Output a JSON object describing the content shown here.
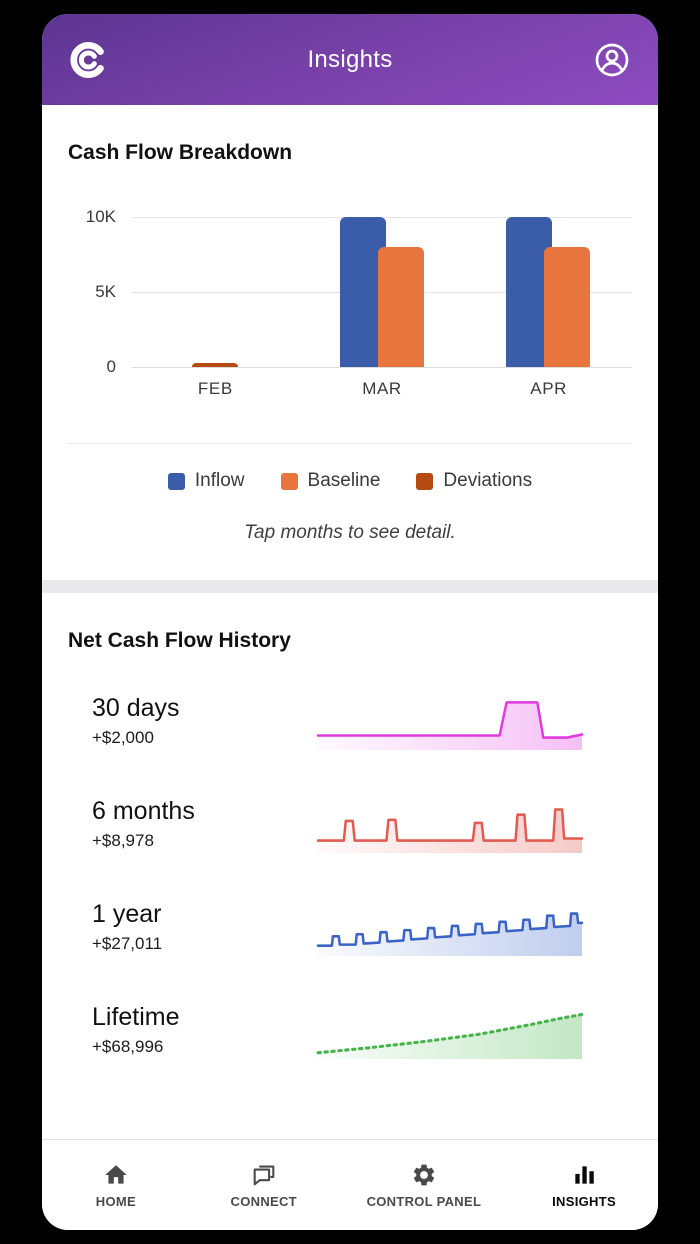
{
  "header": {
    "title": "Insights"
  },
  "cash_flow_breakdown": {
    "title": "Cash Flow Breakdown",
    "caption": "Tap months to see detail.",
    "legend": [
      {
        "label": "Inflow",
        "color": "#3b5ca9"
      },
      {
        "label": "Baseline",
        "color": "#e8743e"
      },
      {
        "label": "Deviations",
        "color": "#b54b10"
      }
    ]
  },
  "chart_data": [
    {
      "type": "bar",
      "title": "Cash Flow Breakdown",
      "categories": [
        "FEB",
        "MAR",
        "APR"
      ],
      "series": [
        {
          "name": "Inflow",
          "color": "#3b5ca9",
          "values": [
            0,
            10000,
            10000
          ]
        },
        {
          "name": "Baseline",
          "color": "#e8743e",
          "values": [
            0,
            8000,
            8000
          ]
        },
        {
          "name": "Deviations",
          "color": "#b54b10",
          "values": [
            250,
            0,
            0
          ]
        }
      ],
      "yticks": [
        "10K",
        "5K",
        "0"
      ],
      "ylim": [
        0,
        10000
      ],
      "grid": true,
      "legend_position": "bottom"
    },
    {
      "type": "line",
      "title": "Net Cash Flow History",
      "series": [
        {
          "name": "30 days",
          "value_label": "+$2,000",
          "net": 2000,
          "color": "#e03ae0",
          "dashed": false,
          "points": [
            [
              2,
              42
            ],
            [
              185,
              42
            ],
            [
              192,
              10
            ],
            [
              223,
              10
            ],
            [
              229,
              44
            ],
            [
              253,
              44
            ],
            [
              268,
              41
            ]
          ]
        },
        {
          "name": "6 months",
          "value_label": "+$8,978",
          "net": 8978,
          "color": "#e05b50",
          "dashed": false,
          "points": [
            [
              2,
              44
            ],
            [
              28,
              44
            ],
            [
              30,
              25
            ],
            [
              37,
              25
            ],
            [
              39,
              44
            ],
            [
              71,
              44
            ],
            [
              73,
              24
            ],
            [
              80,
              24
            ],
            [
              82,
              44
            ],
            [
              158,
              44
            ],
            [
              160,
              27
            ],
            [
              167,
              27
            ],
            [
              169,
              44
            ],
            [
              201,
              44
            ],
            [
              203,
              19
            ],
            [
              210,
              19
            ],
            [
              212,
              44
            ],
            [
              239,
              44
            ],
            [
              241,
              14
            ],
            [
              248,
              14
            ],
            [
              250,
              42
            ],
            [
              268,
              42
            ]
          ]
        },
        {
          "name": "1 year",
          "value_label": "+$27,011",
          "net": 27011,
          "color": "#3a63c8",
          "dashed": false,
          "points": [
            [
              2,
              46
            ],
            [
              16,
              46
            ],
            [
              17,
              37
            ],
            [
              23,
              37
            ],
            [
              24,
              45
            ],
            [
              40,
              45
            ],
            [
              41,
              35
            ],
            [
              47,
              35
            ],
            [
              48,
              44
            ],
            [
              64,
              43
            ],
            [
              65,
              33
            ],
            [
              71,
              33
            ],
            [
              72,
              42
            ],
            [
              88,
              41
            ],
            [
              89,
              31
            ],
            [
              95,
              31
            ],
            [
              96,
              40
            ],
            [
              112,
              39
            ],
            [
              113,
              29
            ],
            [
              119,
              29
            ],
            [
              120,
              38
            ],
            [
              136,
              37
            ],
            [
              137,
              27
            ],
            [
              143,
              27
            ],
            [
              144,
              36
            ],
            [
              160,
              35
            ],
            [
              161,
              25
            ],
            [
              167,
              25
            ],
            [
              168,
              34
            ],
            [
              184,
              33
            ],
            [
              185,
              23
            ],
            [
              191,
              23
            ],
            [
              192,
              32
            ],
            [
              208,
              31
            ],
            [
              209,
              21
            ],
            [
              215,
              21
            ],
            [
              216,
              30
            ],
            [
              232,
              29
            ],
            [
              233,
              17
            ],
            [
              239,
              17
            ],
            [
              240,
              28
            ],
            [
              256,
              27
            ],
            [
              257,
              15
            ],
            [
              263,
              15
            ],
            [
              264,
              24
            ],
            [
              268,
              24
            ]
          ]
        },
        {
          "name": "Lifetime",
          "value_label": "+$68,996",
          "net": 68996,
          "color": "#45b54b",
          "dashed": true,
          "points": [
            [
              2,
              50
            ],
            [
              55,
              45
            ],
            [
              110,
              39
            ],
            [
              165,
              32
            ],
            [
              215,
              23
            ],
            [
              245,
              17
            ],
            [
              268,
              13
            ]
          ]
        }
      ]
    }
  ],
  "bottom_nav": {
    "items": [
      {
        "label": "HOME",
        "icon": "home-icon",
        "active": false
      },
      {
        "label": "CONNECT",
        "icon": "chat-icon",
        "active": false
      },
      {
        "label": "CONTROL PANEL",
        "icon": "gear-icon",
        "active": false
      },
      {
        "label": "INSIGHTS",
        "icon": "bar-chart-icon",
        "active": true
      }
    ]
  }
}
